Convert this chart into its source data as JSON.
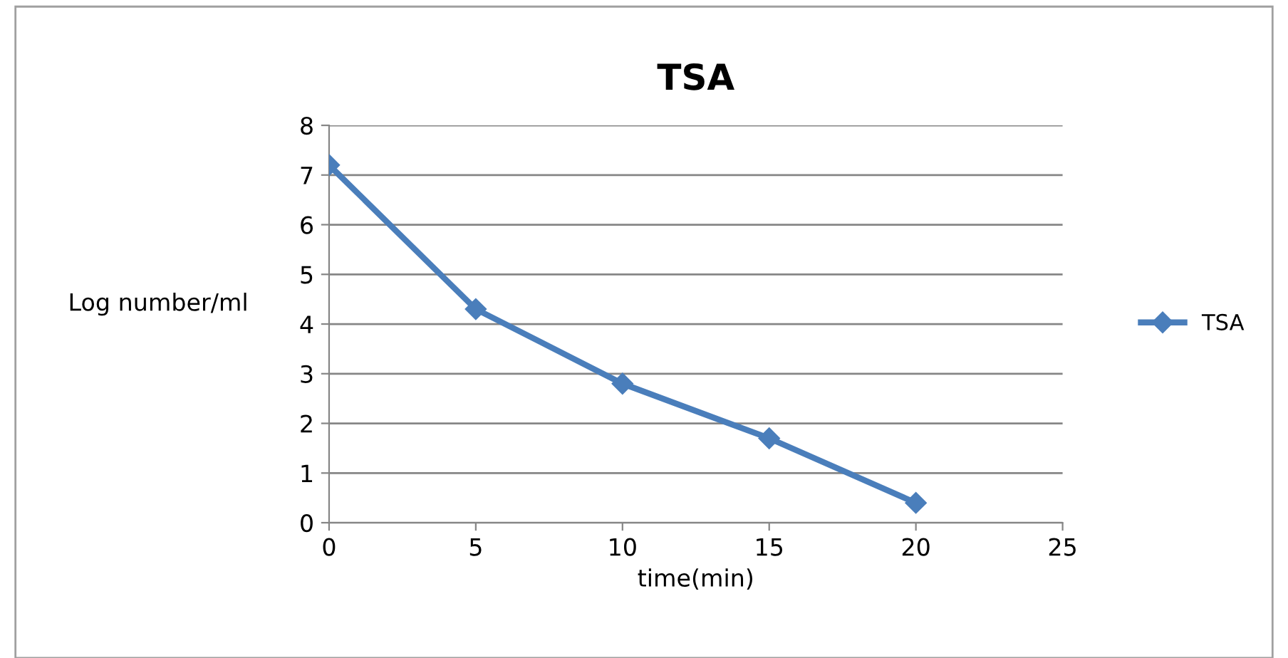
{
  "chart_data": {
    "type": "line",
    "title": "TSA",
    "xlabel": "time(min)",
    "ylabel": "Log number/ml",
    "x": [
      0,
      5,
      10,
      15,
      20
    ],
    "series": [
      {
        "name": "TSA",
        "color": "#4a7ebb",
        "values": [
          7.2,
          4.3,
          2.8,
          1.7,
          0.4
        ]
      }
    ],
    "xlim": [
      0,
      25
    ],
    "xticks": [
      0,
      5,
      10,
      15,
      20,
      25
    ],
    "ylim": [
      0,
      8
    ],
    "yticks": [
      0,
      1,
      2,
      3,
      4,
      5,
      6,
      7,
      8
    ],
    "grid": "y",
    "legend": "right",
    "marker": "diamond",
    "line_style": "solid"
  }
}
